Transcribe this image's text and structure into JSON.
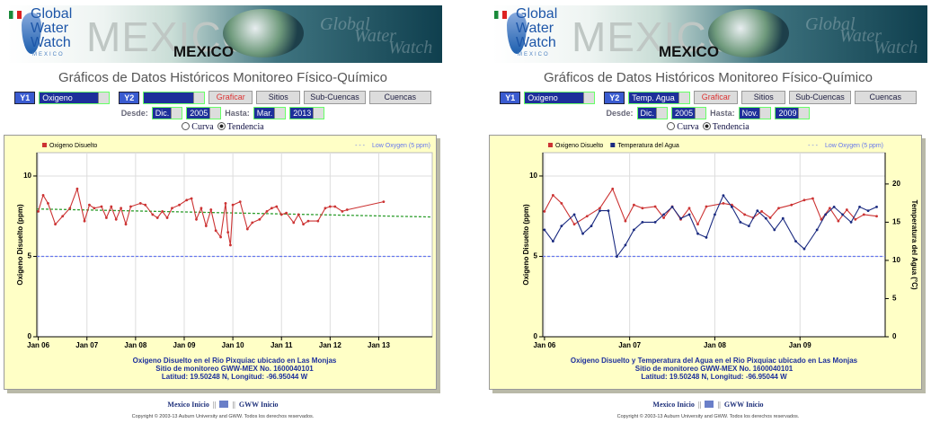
{
  "panels": [
    {
      "banner": {
        "logo": [
          "Global",
          "Water",
          "Watch"
        ],
        "logo_sub": "MEXICO",
        "big": "MEXICO",
        "badge": "MEXICO",
        "ghost": [
          "Global",
          "Water",
          "Watch"
        ]
      },
      "title": "Gráficos de Datos Históricos Monitoreo Físico-Químico",
      "controls": {
        "y1_label": "Y1",
        "y1": "Oxigeno",
        "y2_label": "Y2",
        "buttons": [
          "Graficar",
          "Sitios",
          "Sub-Cuencas",
          "Cuencas"
        ],
        "desde_label": "Desde:",
        "desde_month": "Dic.",
        "desde_year": "2005",
        "hasta_label": "Hasta:",
        "hasta_month": "Mar.",
        "hasta_year": "2013",
        "radios": [
          "Curva",
          "Tendencia"
        ]
      },
      "footer": {
        "links": [
          "Mexico Inicio",
          "GWW Inicio"
        ],
        "separator": "||",
        "copyright": "Copyright © 2003-13 Auburn University and GWW. Todos los derechos reservados."
      }
    },
    {
      "banner": {
        "logo": [
          "Global",
          "Water",
          "Watch"
        ],
        "logo_sub": "MEXICO",
        "big": "MEXICO",
        "badge": "MEXICO",
        "ghost": [
          "Global",
          "Water",
          "Watch"
        ]
      },
      "title": "Gráficos de Datos Históricos Monitoreo Físico-Químico",
      "controls": {
        "y1_label": "Y1",
        "y1": "Oxigeno",
        "y2_label": "Y2",
        "y2": "Temp. Agua",
        "buttons": [
          "Graficar",
          "Sitios",
          "Sub-Cuencas",
          "Cuencas"
        ],
        "desde_label": "Desde:",
        "desde_month": "Dic.",
        "desde_year": "2005",
        "hasta_label": "Hasta:",
        "hasta_month": "Nov.",
        "hasta_year": "2009",
        "radios": [
          "Curva",
          "Tendencia"
        ]
      },
      "footer": {
        "links": [
          "Mexico Inicio",
          "GWW Inicio"
        ],
        "separator": "||",
        "copyright": "Copyright © 2003-13 Auburn University and GWW. Todos los derechos reservados."
      }
    }
  ],
  "chart_data": [
    {
      "type": "line",
      "ylabel": "Oxigeno Disuelto (ppm)",
      "grid": true,
      "xlim": [
        2005.97,
        2014.1
      ],
      "ylim": [
        0,
        11.45
      ],
      "xticks": [
        {
          "value": 2006,
          "label": "Jan 06"
        },
        {
          "value": 2007,
          "label": "Jan 07"
        },
        {
          "value": 2008,
          "label": "Jan 08"
        },
        {
          "value": 2009,
          "label": "Jan 09"
        },
        {
          "value": 2010,
          "label": "Jan 10"
        },
        {
          "value": 2011,
          "label": "Jan 11"
        },
        {
          "value": 2012,
          "label": "Jan 12"
        },
        {
          "value": 2013,
          "label": "Jan 13"
        }
      ],
      "yticks": [
        0,
        5,
        10
      ],
      "series": [
        {
          "name": "Oxigeno Disuelto",
          "color": "#cc3333",
          "x": [
            2006.0,
            2006.1,
            2006.2,
            2006.35,
            2006.5,
            2006.65,
            2006.8,
            2006.95,
            2007.05,
            2007.15,
            2007.3,
            2007.4,
            2007.5,
            2007.6,
            2007.7,
            2007.8,
            2007.9,
            2008.1,
            2008.2,
            2008.35,
            2008.45,
            2008.55,
            2008.65,
            2008.75,
            2008.9,
            2009.05,
            2009.15,
            2009.25,
            2009.35,
            2009.45,
            2009.55,
            2009.65,
            2009.75,
            2009.85,
            2009.9,
            2009.95,
            2010.0,
            2010.15,
            2010.3,
            2010.4,
            2010.55,
            2010.7,
            2010.8,
            2010.9,
            2011.0,
            2011.1,
            2011.25,
            2011.35,
            2011.45,
            2011.55,
            2011.75,
            2011.9,
            2012.0,
            2012.1,
            2012.25,
            2012.35,
            2013.1
          ],
          "values": [
            7.8,
            8.8,
            8.3,
            7.0,
            7.5,
            8.0,
            9.2,
            7.2,
            8.2,
            8.0,
            8.1,
            7.4,
            8.1,
            7.3,
            8.0,
            7.0,
            8.1,
            8.3,
            8.2,
            7.6,
            7.4,
            7.8,
            7.4,
            8.0,
            8.2,
            8.5,
            8.6,
            7.3,
            8.0,
            6.9,
            7.9,
            6.6,
            6.2,
            8.3,
            6.5,
            5.7,
            8.2,
            8.4,
            6.7,
            7.1,
            7.3,
            7.8,
            8.0,
            8.1,
            7.6,
            7.7,
            7.1,
            7.6,
            7.0,
            7.2,
            7.2,
            8.0,
            8.1,
            8.1,
            7.8,
            7.9,
            8.4
          ]
        }
      ],
      "trend": {
        "color": "#2e9e2e",
        "x": [
          2005.97,
          2014.1
        ],
        "values": [
          7.95,
          7.45
        ]
      },
      "reference": {
        "label": "Low Oxygen (5 ppm)",
        "value": 5,
        "color": "#6677ee"
      },
      "caption": [
        "Oxigeno Disuelto en el Rio Pixquiac ubicado en Las Monjas",
        "Sitio de monitoreo GWW-MEX No. 1600040101",
        "Latitud: 19.50248 N, Longitud: -96.95044 W"
      ]
    },
    {
      "type": "line",
      "ylabel": "Oxigeno Disuelto (ppm)",
      "y2label": "Temperatura del Agua (°C)",
      "grid": true,
      "xlim": [
        2005.98,
        2010.0
      ],
      "ylim": [
        0,
        11.45
      ],
      "y2lim": [
        0,
        24.1
      ],
      "xticks": [
        {
          "value": 2006,
          "label": "Jan 06"
        },
        {
          "value": 2007,
          "label": "Jan 07"
        },
        {
          "value": 2008,
          "label": "Jan 08"
        },
        {
          "value": 2009,
          "label": "Jan 09"
        }
      ],
      "yticks": [
        0,
        5,
        10
      ],
      "y2ticks": [
        0,
        5,
        10,
        15,
        20
      ],
      "series": [
        {
          "name": "Oxigeno Disuelto",
          "color": "#cc3333",
          "x": [
            2006.0,
            2006.1,
            2006.2,
            2006.35,
            2006.5,
            2006.65,
            2006.8,
            2006.95,
            2007.05,
            2007.15,
            2007.3,
            2007.4,
            2007.5,
            2007.6,
            2007.7,
            2007.8,
            2007.9,
            2008.1,
            2008.2,
            2008.35,
            2008.45,
            2008.55,
            2008.65,
            2008.75,
            2008.9,
            2009.05,
            2009.15,
            2009.25,
            2009.35,
            2009.45,
            2009.55,
            2009.65,
            2009.75,
            2009.9
          ],
          "values": [
            7.8,
            8.8,
            8.3,
            7.0,
            7.5,
            8.0,
            9.2,
            7.2,
            8.2,
            8.0,
            8.1,
            7.4,
            8.1,
            7.3,
            8.0,
            7.0,
            8.1,
            8.3,
            8.2,
            7.6,
            7.4,
            7.8,
            7.4,
            8.0,
            8.2,
            8.5,
            8.6,
            7.3,
            8.0,
            7.2,
            7.9,
            7.3,
            7.6,
            7.5
          ]
        },
        {
          "name": "Temperatura del Agua",
          "color": "#1a2a80",
          "axis": "y2",
          "x": [
            2006.0,
            2006.1,
            2006.2,
            2006.35,
            2006.45,
            2006.55,
            2006.65,
            2006.75,
            2006.85,
            2006.95,
            2007.05,
            2007.15,
            2007.3,
            2007.4,
            2007.5,
            2007.6,
            2007.7,
            2007.8,
            2007.9,
            2008.0,
            2008.1,
            2008.2,
            2008.3,
            2008.4,
            2008.5,
            2008.6,
            2008.7,
            2008.8,
            2008.95,
            2009.05,
            2009.2,
            2009.3,
            2009.4,
            2009.5,
            2009.6,
            2009.7,
            2009.8,
            2009.9
          ],
          "values": [
            14,
            12.5,
            14.5,
            16,
            13.5,
            14.5,
            16.5,
            16.5,
            10.5,
            12,
            14,
            15,
            15,
            16,
            17,
            15.5,
            16,
            13.5,
            13,
            16,
            18.5,
            17,
            15,
            14.5,
            16.5,
            15.5,
            14,
            15.5,
            12.5,
            11.5,
            14,
            16,
            17,
            16,
            15,
            17,
            16.5,
            17
          ]
        }
      ],
      "reference": {
        "label": "Low Oxygen (5 ppm)",
        "value": 5,
        "color": "#6677ee"
      },
      "caption": [
        "Oxigeno Disuelto y Temperatura del Agua en el Rio Pixquiac ubicado en Las Monjas",
        "Sitio de monitoreo GWW-MEX No. 1600040101",
        "Latitud: 19.50248 N, Longitud: -96.95044 W"
      ]
    }
  ]
}
